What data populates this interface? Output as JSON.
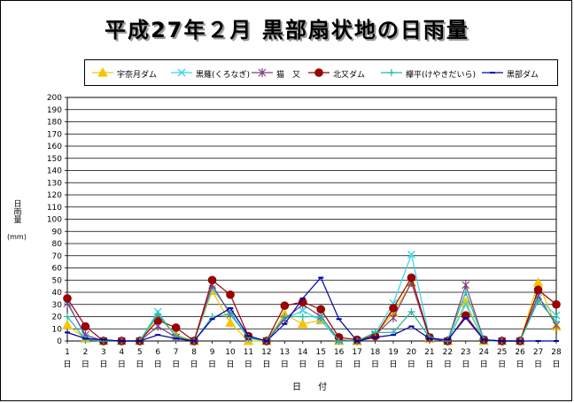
{
  "title": "平成27年２月 黒部扇状地の日雨量",
  "ylabel": "日雨量",
  "yunit": "(mm)",
  "xlabel": "日 付",
  "day_unit": "日",
  "chart_data": {
    "type": "line",
    "x": [
      1,
      2,
      3,
      4,
      5,
      6,
      7,
      8,
      9,
      10,
      11,
      12,
      13,
      14,
      15,
      16,
      17,
      18,
      19,
      20,
      21,
      22,
      23,
      24,
      25,
      26,
      27,
      28
    ],
    "ylim": [
      0,
      200
    ],
    "ytick_step": 10,
    "grid": true,
    "legend": "top",
    "series": [
      {
        "name": "宇奈月ダム",
        "color": "#f5c400",
        "marker": "triangle",
        "values": [
          13,
          2,
          0,
          0,
          0,
          20,
          5,
          0,
          41,
          15,
          0,
          0,
          22,
          14,
          17,
          0,
          0,
          5,
          23,
          48,
          2,
          0,
          32,
          0,
          0,
          0,
          48,
          12
        ]
      },
      {
        "name": "黒薙(くろなぎ)",
        "color": "#33d6e6",
        "marker": "x",
        "values": [
          33,
          3,
          0,
          0,
          0,
          24,
          3,
          0,
          43,
          24,
          2,
          0,
          18,
          25,
          17,
          0,
          0,
          6,
          31,
          71,
          3,
          0,
          30,
          0,
          0,
          0,
          35,
          21
        ]
      },
      {
        "name": "猫　又",
        "color": "#7f3f7f",
        "marker": "star",
        "values": [
          31,
          5,
          0,
          0,
          0,
          12,
          3,
          0,
          46,
          22,
          3,
          0,
          18,
          30,
          20,
          1,
          0,
          5,
          19,
          48,
          2,
          0,
          46,
          1,
          0,
          0,
          37,
          13
        ]
      },
      {
        "name": "北又ダム",
        "color": "#a00000",
        "marker": "circle",
        "values": [
          35,
          12,
          0,
          0,
          0,
          17,
          11,
          0,
          50,
          38,
          4,
          0,
          29,
          32,
          26,
          3,
          1,
          4,
          27,
          52,
          3,
          0,
          21,
          1,
          0,
          0,
          42,
          30
        ]
      },
      {
        "name": "欅平(けやきだいら)",
        "color": "#26b5a0",
        "marker": "plus",
        "values": [
          20,
          1,
          0,
          0,
          0,
          22,
          4,
          0,
          20,
          22,
          3,
          0,
          20,
          20,
          20,
          0,
          0,
          7,
          7,
          24,
          3,
          0,
          40,
          1,
          0,
          0,
          33,
          16
        ]
      },
      {
        "name": "黒部ダム",
        "color": "#0000aa",
        "marker": "dash",
        "values": [
          7,
          2,
          1,
          0,
          0,
          5,
          2,
          0,
          18,
          27,
          4,
          0,
          14,
          35,
          52,
          18,
          0,
          3,
          5,
          12,
          2,
          1,
          19,
          1,
          0,
          0,
          0,
          0
        ]
      }
    ]
  }
}
